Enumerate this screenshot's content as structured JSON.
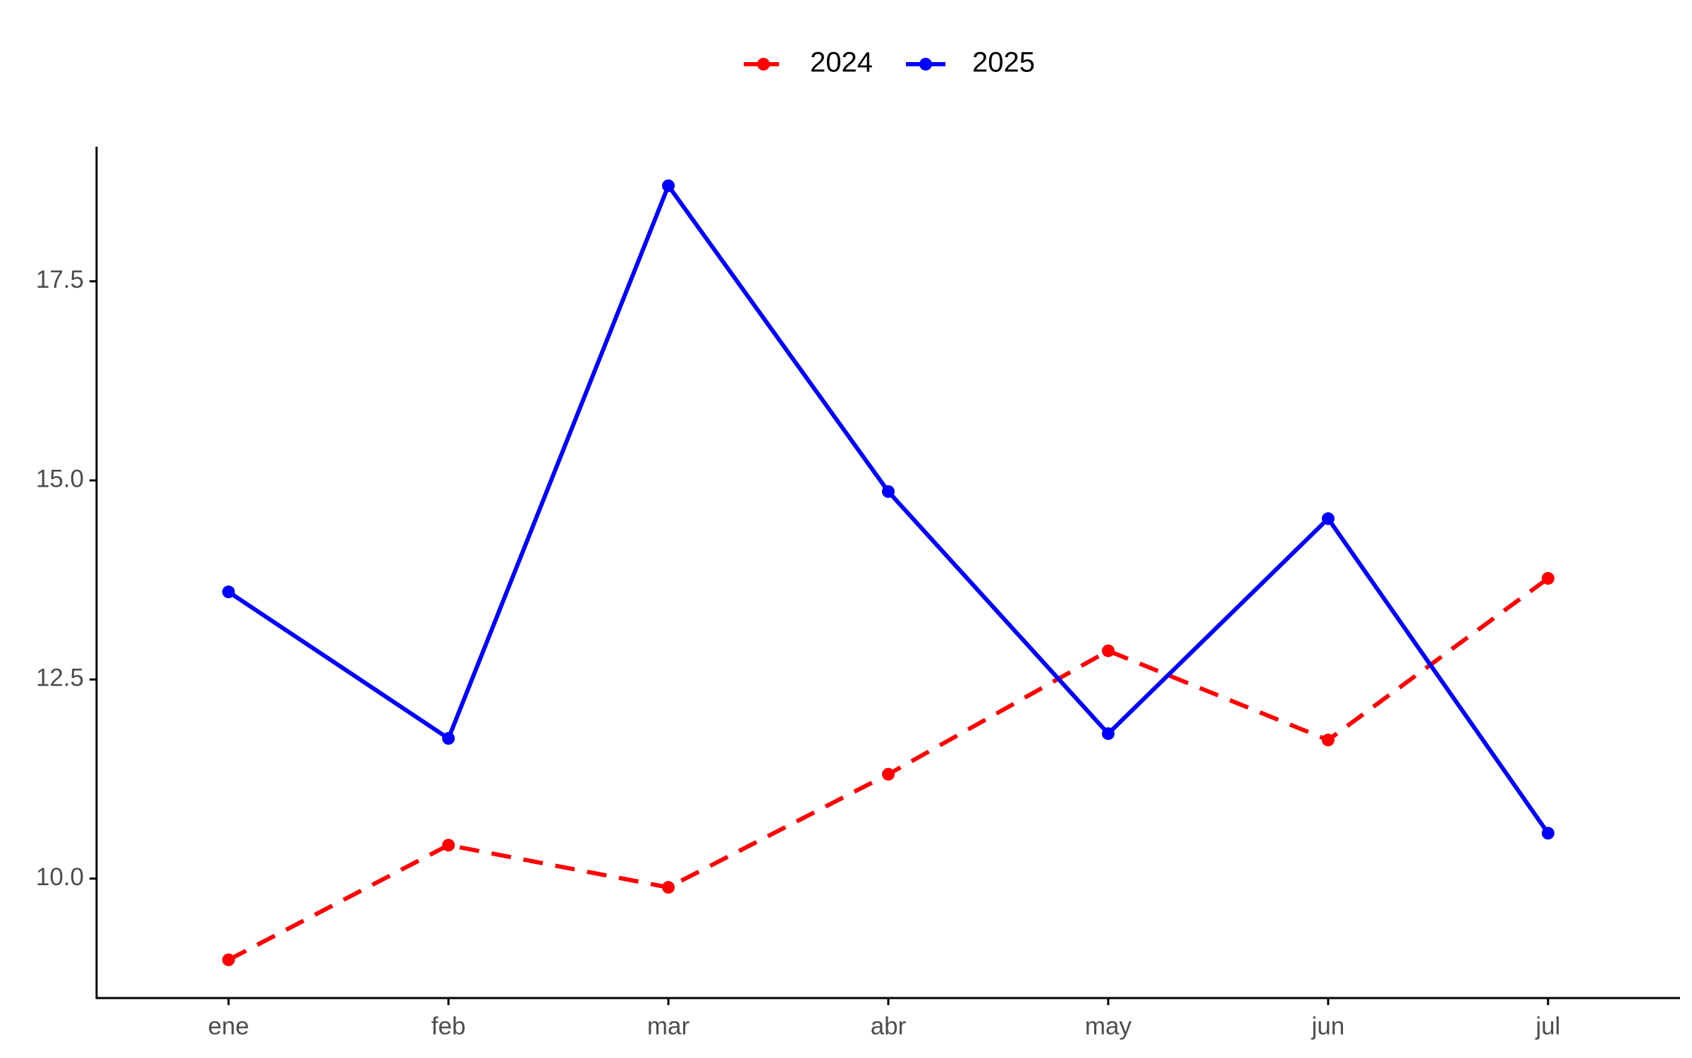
{
  "chart_data": {
    "type": "line",
    "categories": [
      "ene",
      "feb",
      "mar",
      "abr",
      "may",
      "jun",
      "jul"
    ],
    "series": [
      {
        "name": "2024",
        "color": "#ff0000",
        "linestyle": "dashed",
        "values": [
          8.98,
          10.42,
          9.89,
          11.31,
          12.86,
          11.74,
          13.77
        ]
      },
      {
        "name": "2025",
        "color": "#0000ff",
        "linestyle": "solid",
        "values": [
          13.6,
          11.76,
          18.7,
          14.86,
          11.82,
          14.52,
          10.57
        ]
      }
    ],
    "ylim": [
      8.5,
      19.19
    ],
    "yticks": [
      {
        "value": 10,
        "label": "10.0"
      },
      12.5,
      {
        "value": 15,
        "label": "15.0"
      },
      17.5
    ],
    "grid": false,
    "legend": "top"
  }
}
